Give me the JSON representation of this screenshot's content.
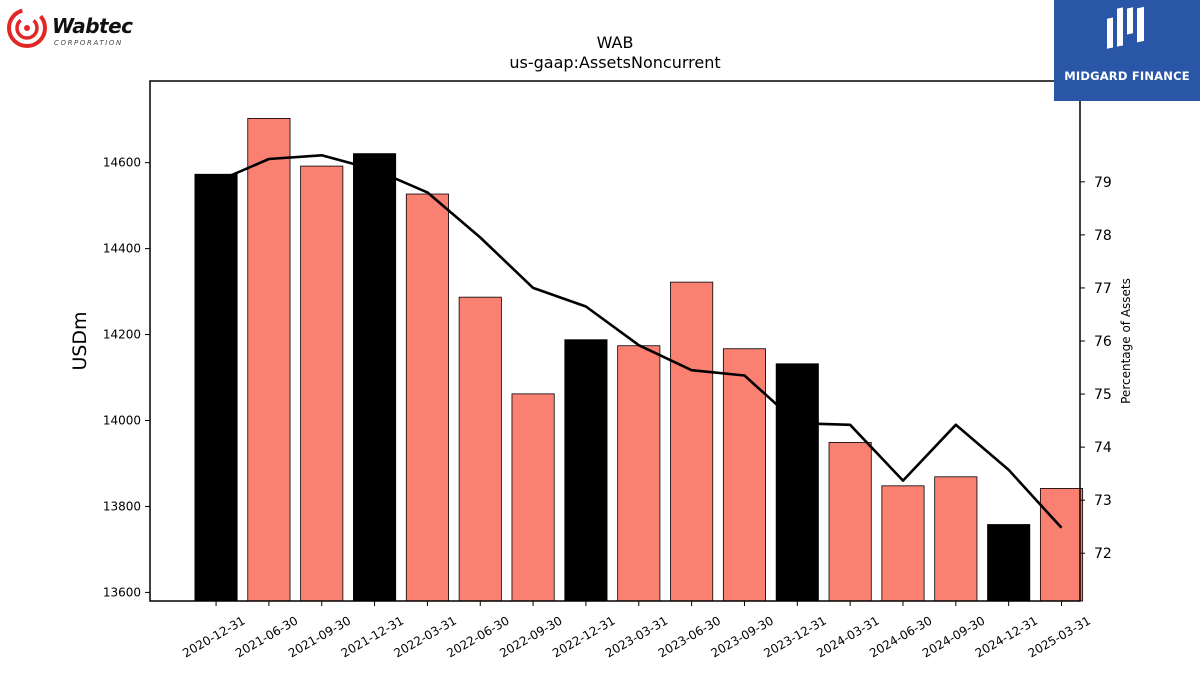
{
  "brand": {
    "name": "Wabtec",
    "subtitle": "CORPORATION"
  },
  "badge": {
    "text": "MIDGARD FINANCE",
    "color": "#2a56a8"
  },
  "chart_data": {
    "type": "bar",
    "title": "WAB",
    "subtitle": "us-gaap:AssetsNoncurrent",
    "ylabel": "USDm",
    "y2label": "Percentage of Assets",
    "categories": [
      "2020-12-31",
      "2021-06-30",
      "2021-09-30",
      "2021-12-31",
      "2022-03-31",
      "2022-06-30",
      "2022-09-30",
      "2022-12-31",
      "2023-03-31",
      "2023-06-30",
      "2023-09-30",
      "2023-12-31",
      "2024-03-31",
      "2024-06-30",
      "2024-09-30",
      "2024-12-31",
      "2025-03-31"
    ],
    "series": [
      {
        "type": "bar",
        "axis": "left",
        "values": [
          14573,
          14703,
          14592,
          14621,
          14527,
          14287,
          14062,
          14188,
          14174,
          14322,
          14167,
          14132,
          13949,
          13848,
          13869,
          13758,
          13842
        ],
        "colors": [
          "#000000",
          "#fa8072",
          "#fa8072",
          "#000000",
          "#fa8072",
          "#fa8072",
          "#fa8072",
          "#000000",
          "#fa8072",
          "#fa8072",
          "#fa8072",
          "#000000",
          "#fa8072",
          "#fa8072",
          "#fa8072",
          "#000000",
          "#fa8072"
        ]
      },
      {
        "type": "line",
        "axis": "right",
        "color": "#000000",
        "values": [
          79.0,
          79.43,
          79.5,
          79.23,
          78.8,
          77.95,
          77.0,
          76.65,
          75.92,
          75.45,
          75.35,
          74.45,
          74.42,
          73.37,
          74.42,
          73.57,
          72.48
        ]
      }
    ],
    "ylim": [
      13580,
      14790
    ],
    "y2lim": [
      71.1,
      80.9
    ],
    "yticks": [
      13600,
      13800,
      14000,
      14200,
      14400,
      14600
    ],
    "y2ticks": [
      72,
      73,
      74,
      75,
      76,
      77,
      78,
      79
    ],
    "grid": false
  }
}
